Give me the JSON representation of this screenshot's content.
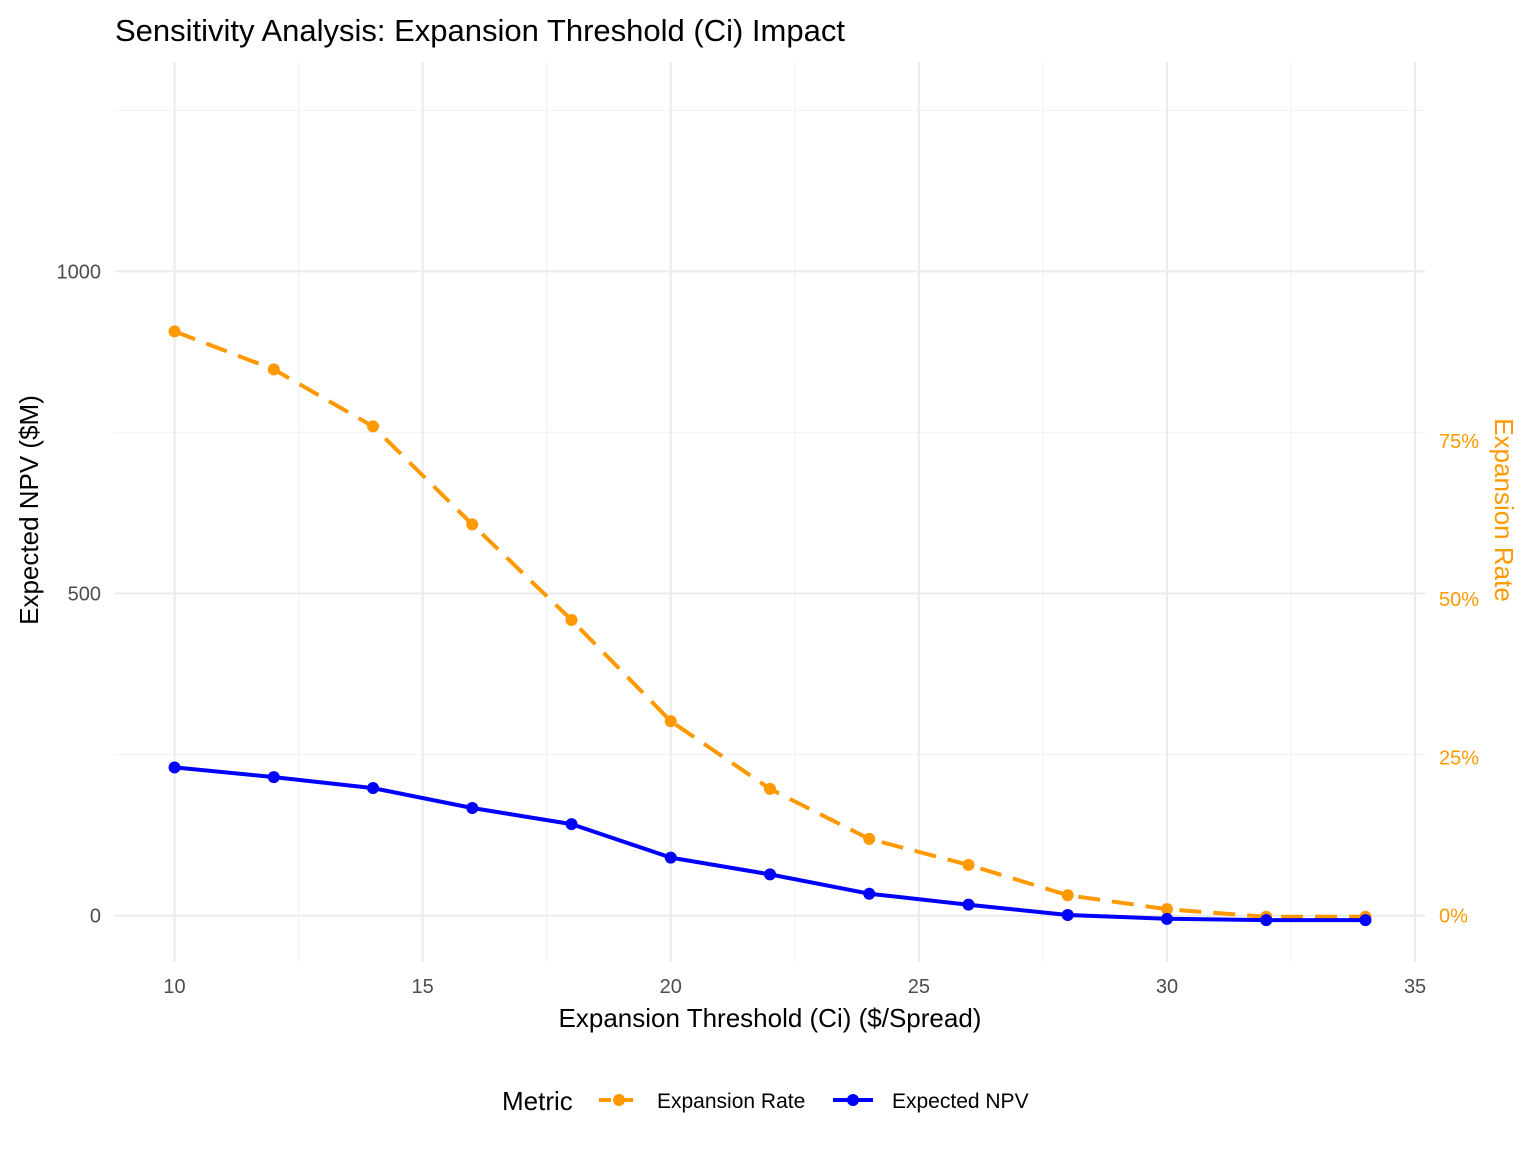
{
  "chart_data": {
    "type": "line",
    "title": "Sensitivity Analysis: Expansion Threshold (Ci) Impact",
    "xlabel": "Expansion Threshold (Ci) ($/Spread)",
    "ylabel": "Expected NPV ($M)",
    "y2label": "Expansion Rate",
    "xlim": [
      8.8,
      35.2
    ],
    "ylim": [
      -72,
      1325
    ],
    "y2lim": [
      -0.0735,
      1.3488
    ],
    "xticks": [
      10,
      15,
      20,
      25,
      30,
      35
    ],
    "xtick_labels": [
      "10",
      "15",
      "20",
      "25",
      "30",
      "35"
    ],
    "yticks": [
      0,
      500,
      1000
    ],
    "ytick_labels": [
      "0",
      "500",
      "1000"
    ],
    "y2ticks": [
      0,
      0.25,
      0.5,
      0.75
    ],
    "y2tick_labels": [
      "0%",
      "25%",
      "50%",
      "75%"
    ],
    "grid": true,
    "x": [
      10,
      12,
      14,
      16,
      18,
      20,
      22,
      24,
      26,
      28,
      30,
      32,
      34
    ],
    "series": [
      {
        "name": "Expansion Rate",
        "axis": "right",
        "color": "#FF9900",
        "dash": "dashed",
        "values": [
          0.923,
          0.863,
          0.773,
          0.618,
          0.467,
          0.307,
          0.2,
          0.121,
          0.08,
          0.032,
          0.01,
          -0.002,
          -0.002
        ]
      },
      {
        "name": "Expected NPV",
        "axis": "left",
        "color": "#0000FF",
        "dash": "solid",
        "values": [
          230,
          215,
          198,
          167,
          142,
          90,
          64,
          34,
          17,
          1,
          -5,
          -7,
          -7
        ]
      }
    ],
    "legend": {
      "title": "Metric",
      "position": "bottom"
    }
  }
}
